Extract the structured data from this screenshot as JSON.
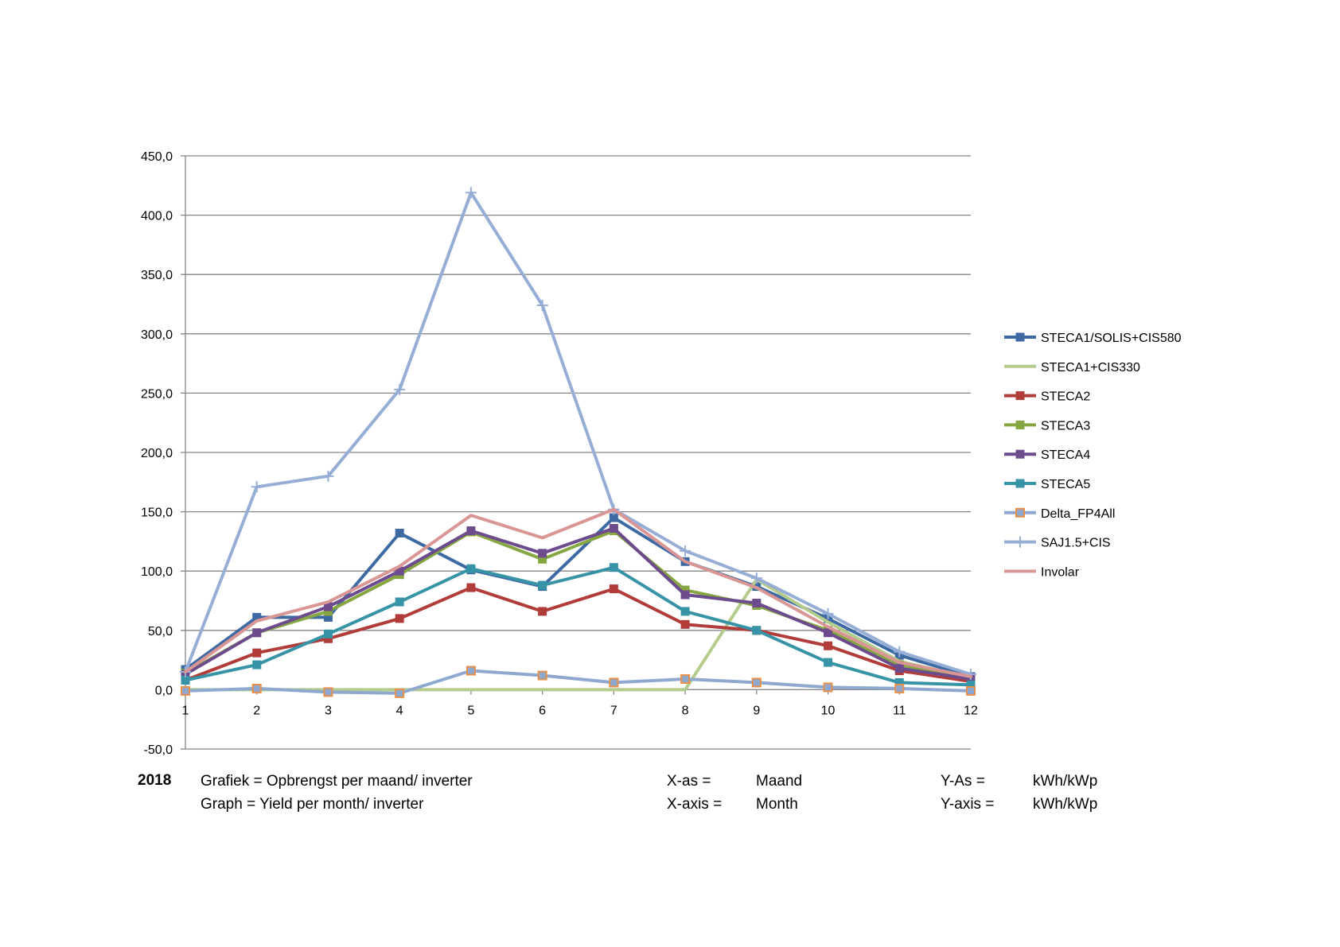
{
  "chart_data": {
    "type": "line",
    "title": "",
    "xlabel": "",
    "ylabel": "",
    "x": [
      1,
      2,
      3,
      4,
      5,
      6,
      7,
      8,
      9,
      10,
      11,
      12
    ],
    "x_tick_labels": [
      "1",
      "2",
      "3",
      "4",
      "5",
      "6",
      "7",
      "8",
      "9",
      "10",
      "11",
      "12"
    ],
    "ylim": [
      -50,
      450
    ],
    "y_ticks": [
      -50,
      0,
      50,
      100,
      150,
      200,
      250,
      300,
      350,
      400,
      450
    ],
    "y_tick_labels": [
      "-50,0",
      "0,0",
      "50,0",
      "100,0",
      "150,0",
      "200,0",
      "250,0",
      "300,0",
      "350,0",
      "400,0",
      "450,0"
    ],
    "grid": true,
    "legend_position": "right",
    "series": [
      {
        "name": "STECA1/SOLIS+CIS580",
        "color": "#3e6aa3",
        "marker": "square",
        "values": [
          17,
          61,
          61,
          132,
          101,
          87,
          145,
          108,
          87,
          60,
          29,
          11
        ]
      },
      {
        "name": "STECA1+CIS330",
        "color": "#b3cb8c",
        "marker": "none",
        "values": [
          0,
          0,
          0,
          0,
          0,
          0,
          0,
          0,
          93,
          57,
          24,
          10
        ]
      },
      {
        "name": "STECA2",
        "color": "#b13c3a",
        "marker": "square",
        "values": [
          8,
          31,
          43,
          60,
          86,
          66,
          85,
          55,
          50,
          37,
          16,
          7
        ]
      },
      {
        "name": "STECA3",
        "color": "#85a640",
        "marker": "square",
        "values": [
          14,
          48,
          66,
          97,
          133,
          110,
          134,
          84,
          71,
          50,
          21,
          9
        ]
      },
      {
        "name": "STECA4",
        "color": "#6d4c8e",
        "marker": "square",
        "values": [
          13,
          48,
          70,
          100,
          134,
          115,
          136,
          80,
          73,
          48,
          18,
          9
        ]
      },
      {
        "name": "STECA5",
        "color": "#3794a6",
        "marker": "square",
        "values": [
          8,
          21,
          47,
          74,
          102,
          88,
          103,
          66,
          50,
          23,
          6,
          4
        ]
      },
      {
        "name": "Delta_FP4All",
        "color": "#8ea8d0",
        "marker": "square-orange",
        "values": [
          -1,
          1,
          -2,
          -3,
          16,
          12,
          6,
          9,
          6,
          2,
          1,
          -1
        ]
      },
      {
        "name": "SAJ1.5+CIS",
        "color": "#96aed6",
        "marker": "plus",
        "values": [
          15,
          171,
          180,
          253,
          419,
          324,
          152,
          117,
          94,
          64,
          32,
          13
        ]
      },
      {
        "name": "Involar",
        "color": "#d99694",
        "marker": "none",
        "values": [
          15,
          58,
          74,
          104,
          147,
          128,
          152,
          108,
          86,
          53,
          23,
          11
        ]
      }
    ]
  },
  "caption": {
    "year": "2018",
    "line1": "Grafiek = Opbrengst per maand/ inverter",
    "line2": "Graph = Yield per month/ inverter",
    "xas_label": "X-as =",
    "xaxis_label": "X-axis =",
    "xas_value": "Maand",
    "xaxis_value": "Month",
    "yas_label": "Y-As =",
    "yaxis_label": "Y-axis =",
    "yas_value": "kWh/kWp",
    "yaxis_value": "kWh/kWp"
  }
}
